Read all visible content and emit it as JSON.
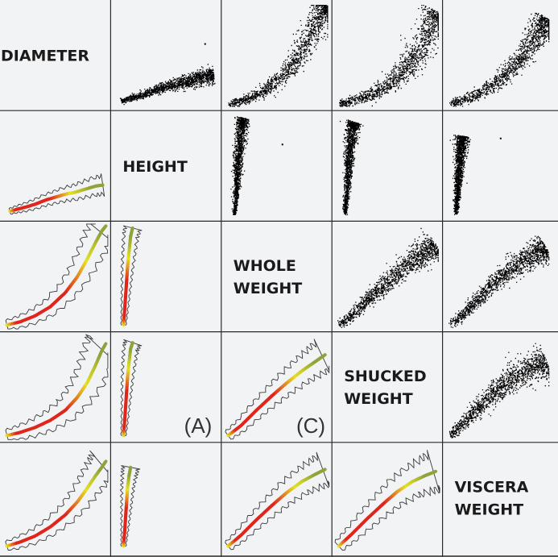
{
  "chart_data": {
    "type": "scatter",
    "subtype": "scatterplot-matrix",
    "variables": [
      "DIAMETER",
      "HEIGHT",
      "WHOLE WEIGHT",
      "SHUCKED WEIGHT",
      "VISCERA WEIGHT"
    ],
    "upper_triangle": "scatter",
    "lower_triangle": "density-contour-trend",
    "diagonal": "variable-name",
    "annotations": [
      "(A)",
      "(C)"
    ],
    "colors": {
      "background": "#f2f3f5",
      "points": "#000000",
      "grid": "#2a2a2a",
      "contour": "#3a3a3a",
      "density_low": "#8fa33a",
      "density_mid": "#e6e022",
      "density_high": "#e0251c"
    },
    "pairs": {
      "0-1": {
        "points": [
          [
            0.05,
            0.05
          ],
          [
            0.12,
            0.07
          ],
          [
            0.2,
            0.09
          ],
          [
            0.3,
            0.12
          ],
          [
            0.4,
            0.16
          ],
          [
            0.5,
            0.19
          ],
          [
            0.6,
            0.22
          ],
          [
            0.7,
            0.24
          ],
          [
            0.8,
            0.27
          ],
          [
            0.9,
            0.3
          ],
          [
            0.97,
            0.31
          ]
        ],
        "spread": 0.03,
        "outliers": [
          [
            0.88,
            0.62
          ]
        ]
      },
      "0-2": {
        "points": [
          [
            0.02,
            0.02
          ],
          [
            0.15,
            0.05
          ],
          [
            0.3,
            0.11
          ],
          [
            0.45,
            0.2
          ],
          [
            0.6,
            0.34
          ],
          [
            0.72,
            0.5
          ],
          [
            0.82,
            0.68
          ],
          [
            0.9,
            0.84
          ],
          [
            0.96,
            0.95
          ],
          [
            1.0,
            1.0
          ]
        ],
        "spread": 0.05,
        "outliers": []
      },
      "0-3": {
        "points": [
          [
            0.02,
            0.02
          ],
          [
            0.15,
            0.05
          ],
          [
            0.3,
            0.1
          ],
          [
            0.45,
            0.17
          ],
          [
            0.6,
            0.27
          ],
          [
            0.72,
            0.4
          ],
          [
            0.82,
            0.55
          ],
          [
            0.9,
            0.72
          ],
          [
            0.96,
            0.86
          ],
          [
            1.0,
            0.93
          ]
        ],
        "spread": 0.06,
        "outliers": []
      },
      "0-4": {
        "points": [
          [
            0.02,
            0.02
          ],
          [
            0.15,
            0.06
          ],
          [
            0.3,
            0.12
          ],
          [
            0.45,
            0.21
          ],
          [
            0.6,
            0.33
          ],
          [
            0.72,
            0.46
          ],
          [
            0.82,
            0.6
          ],
          [
            0.9,
            0.72
          ],
          [
            0.96,
            0.8
          ],
          [
            1.0,
            0.86
          ]
        ],
        "spread": 0.05,
        "outliers": []
      },
      "1-2": {
        "points": [
          [
            0.08,
            0.02
          ],
          [
            0.09,
            0.15
          ],
          [
            0.1,
            0.3
          ],
          [
            0.11,
            0.45
          ],
          [
            0.12,
            0.6
          ],
          [
            0.135,
            0.75
          ],
          [
            0.15,
            0.9
          ],
          [
            0.17,
            0.98
          ]
        ],
        "spread": 0.025,
        "outliers": [
          [
            0.55,
            0.72
          ]
        ]
      },
      "1-3": {
        "points": [
          [
            0.08,
            0.02
          ],
          [
            0.09,
            0.15
          ],
          [
            0.1,
            0.3
          ],
          [
            0.11,
            0.45
          ],
          [
            0.12,
            0.6
          ],
          [
            0.135,
            0.75
          ],
          [
            0.15,
            0.88
          ],
          [
            0.17,
            0.94
          ]
        ],
        "spread": 0.025,
        "outliers": []
      },
      "1-4": {
        "points": [
          [
            0.08,
            0.02
          ],
          [
            0.09,
            0.15
          ],
          [
            0.1,
            0.3
          ],
          [
            0.11,
            0.45
          ],
          [
            0.12,
            0.6
          ],
          [
            0.135,
            0.72
          ],
          [
            0.15,
            0.8
          ]
        ],
        "spread": 0.025,
        "outliers": [
          [
            0.52,
            0.78
          ]
        ]
      },
      "2-3": {
        "points": [
          [
            0.02,
            0.02
          ],
          [
            0.15,
            0.12
          ],
          [
            0.3,
            0.27
          ],
          [
            0.45,
            0.41
          ],
          [
            0.6,
            0.54
          ],
          [
            0.75,
            0.66
          ],
          [
            0.88,
            0.75
          ],
          [
            0.98,
            0.82
          ]
        ],
        "spread": 0.05,
        "outliers": []
      },
      "2-4": {
        "points": [
          [
            0.02,
            0.02
          ],
          [
            0.15,
            0.13
          ],
          [
            0.3,
            0.28
          ],
          [
            0.45,
            0.42
          ],
          [
            0.6,
            0.55
          ],
          [
            0.75,
            0.66
          ],
          [
            0.88,
            0.73
          ],
          [
            0.98,
            0.78
          ]
        ],
        "spread": 0.05,
        "outliers": []
      },
      "3-4": {
        "points": [
          [
            0.02,
            0.02
          ],
          [
            0.15,
            0.14
          ],
          [
            0.3,
            0.29
          ],
          [
            0.45,
            0.43
          ],
          [
            0.6,
            0.56
          ],
          [
            0.75,
            0.66
          ],
          [
            0.88,
            0.72
          ],
          [
            0.98,
            0.76
          ]
        ],
        "spread": 0.06,
        "outliers": []
      }
    }
  }
}
